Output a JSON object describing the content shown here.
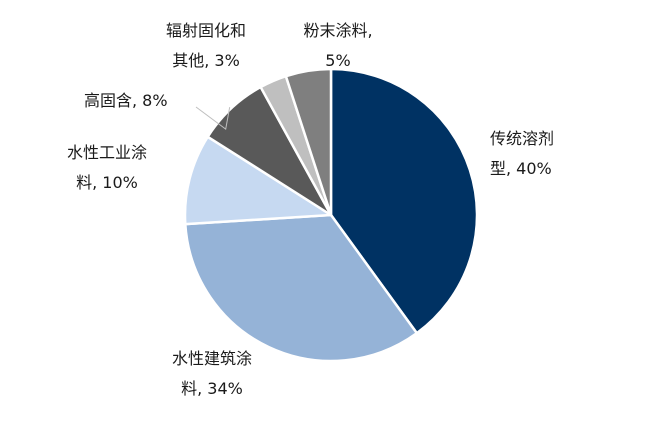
{
  "chart_data": {
    "type": "pie",
    "title": "",
    "unit": "%",
    "slices": [
      {
        "label_lines": [
          "传统溶剂",
          "型, 40%"
        ],
        "value": 40,
        "color": "#003263"
      },
      {
        "label_lines": [
          "水性建筑涂",
          "料, 34%"
        ],
        "value": 34,
        "color": "#95b3d7"
      },
      {
        "label_lines": [
          "水性工业涂",
          "料, 10%"
        ],
        "value": 10,
        "color": "#c6d9f1"
      },
      {
        "label_lines": [
          "高固含, 8%"
        ],
        "value": 8,
        "color": "#595959"
      },
      {
        "label_lines": [
          "辐射固化和",
          "其他, 3%"
        ],
        "value": 3,
        "color": "#bfbfbf"
      },
      {
        "label_lines": [
          "粉末涂料,",
          "5%"
        ],
        "value": 5,
        "color": "#7f7f7f"
      }
    ],
    "start_angle_deg": 0,
    "direction": "clockwise",
    "legend": "none"
  }
}
